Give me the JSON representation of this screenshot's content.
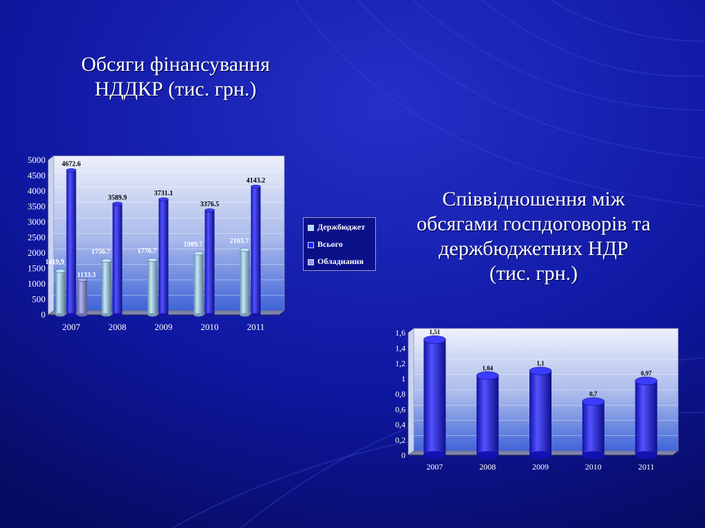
{
  "slide": {
    "title1_line1": "Обсяги фінансування",
    "title1_line2": "НДДКР (тис. грн.)",
    "title2_line1": "Співвідношення між",
    "title2_line2": "обсягами госпдоговорів та",
    "title2_line3": "держбюджетних НДР",
    "title2_line4": "(тис. грн.)"
  },
  "colors": {
    "background": "#0a0f7a",
    "series1": "#aee0ff",
    "series2": "#1a1aff",
    "series3": "#9a9cf0"
  },
  "chart_data": [
    {
      "type": "bar",
      "categories": [
        "2007",
        "2008",
        "2009",
        "2010",
        "2011"
      ],
      "series": [
        {
          "name": "Держбюджет",
          "values": [
            1419.9,
            1756.7,
            1776.7,
            1989.7,
            2103.7
          ],
          "labels": [
            "1419,9",
            "1756.7",
            "1776.7",
            "1989.7",
            "2103.7"
          ]
        },
        {
          "name": "Всього",
          "values": [
            4672.6,
            3589.9,
            3731.1,
            3376.5,
            4143.2
          ],
          "labels": [
            "4672.6",
            "3589.9",
            "3731.1",
            "3376.5",
            "4143.2"
          ]
        },
        {
          "name": "Обладнання",
          "values": [
            1133.3,
            null,
            null,
            null,
            null
          ],
          "labels": [
            "1133.3",
            "",
            "",
            "",
            ""
          ]
        }
      ],
      "yticks": [
        "0",
        "500",
        "1000",
        "1500",
        "2000",
        "2500",
        "3000",
        "3500",
        "4000",
        "4500",
        "5000"
      ],
      "ylim": [
        0,
        5000
      ],
      "legend": "right",
      "grid": true
    },
    {
      "type": "bar",
      "categories": [
        "2007",
        "2008",
        "2009",
        "2010",
        "2011"
      ],
      "series": [
        {
          "values": [
            1.51,
            1.04,
            1.1,
            0.7,
            0.97
          ],
          "labels": [
            "1,51",
            "1,04",
            "1,1",
            "0,7",
            "0,97"
          ]
        }
      ],
      "yticks": [
        "0",
        "0,2",
        "0,4",
        "0,6",
        "0,8",
        "1",
        "1,2",
        "1,4",
        "1,6"
      ],
      "ylim": [
        0,
        1.6
      ],
      "grid": true
    }
  ]
}
